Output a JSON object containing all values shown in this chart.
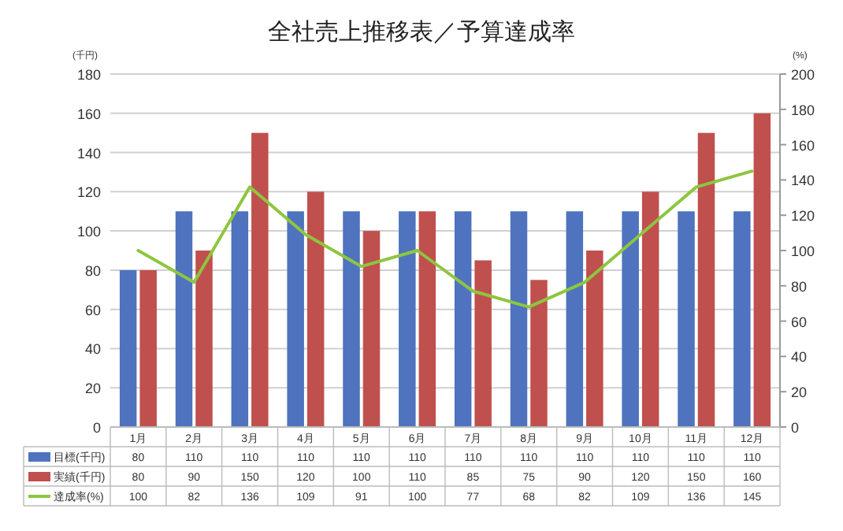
{
  "chart_data": {
    "type": "bar",
    "title": "全社売上推移表／予算達成率",
    "ylabel": "(千円)",
    "y2label": "(%)",
    "categories": [
      "1月",
      "2月",
      "3月",
      "4月",
      "5月",
      "6月",
      "7月",
      "8月",
      "9月",
      "10月",
      "11月",
      "12月"
    ],
    "series": [
      {
        "name": "目標(千円)",
        "color": "#4f73be",
        "values": [
          80,
          110,
          110,
          110,
          110,
          110,
          110,
          110,
          110,
          110,
          110,
          110
        ]
      },
      {
        "name": "実績(千円)",
        "color": "#c0504d",
        "values": [
          80,
          90,
          150,
          120,
          100,
          110,
          85,
          75,
          90,
          120,
          150,
          160
        ]
      },
      {
        "name": "達成率(%)",
        "type": "line",
        "axis": "y2",
        "color": "#8dc63f",
        "values": [
          100,
          82,
          136,
          109,
          91,
          100,
          77,
          68,
          82,
          109,
          136,
          145
        ]
      }
    ],
    "ylim": [
      0,
      180
    ],
    "yticks": [
      0,
      20,
      40,
      60,
      80,
      100,
      120,
      140,
      160,
      180
    ],
    "y2lim": [
      0,
      200
    ],
    "y2ticks": [
      0,
      20,
      40,
      60,
      80,
      100,
      120,
      140,
      160,
      180,
      200
    ],
    "grid": "y",
    "data_labels": true,
    "legend": "bottom",
    "marker": "none",
    "line_style": "solid"
  }
}
